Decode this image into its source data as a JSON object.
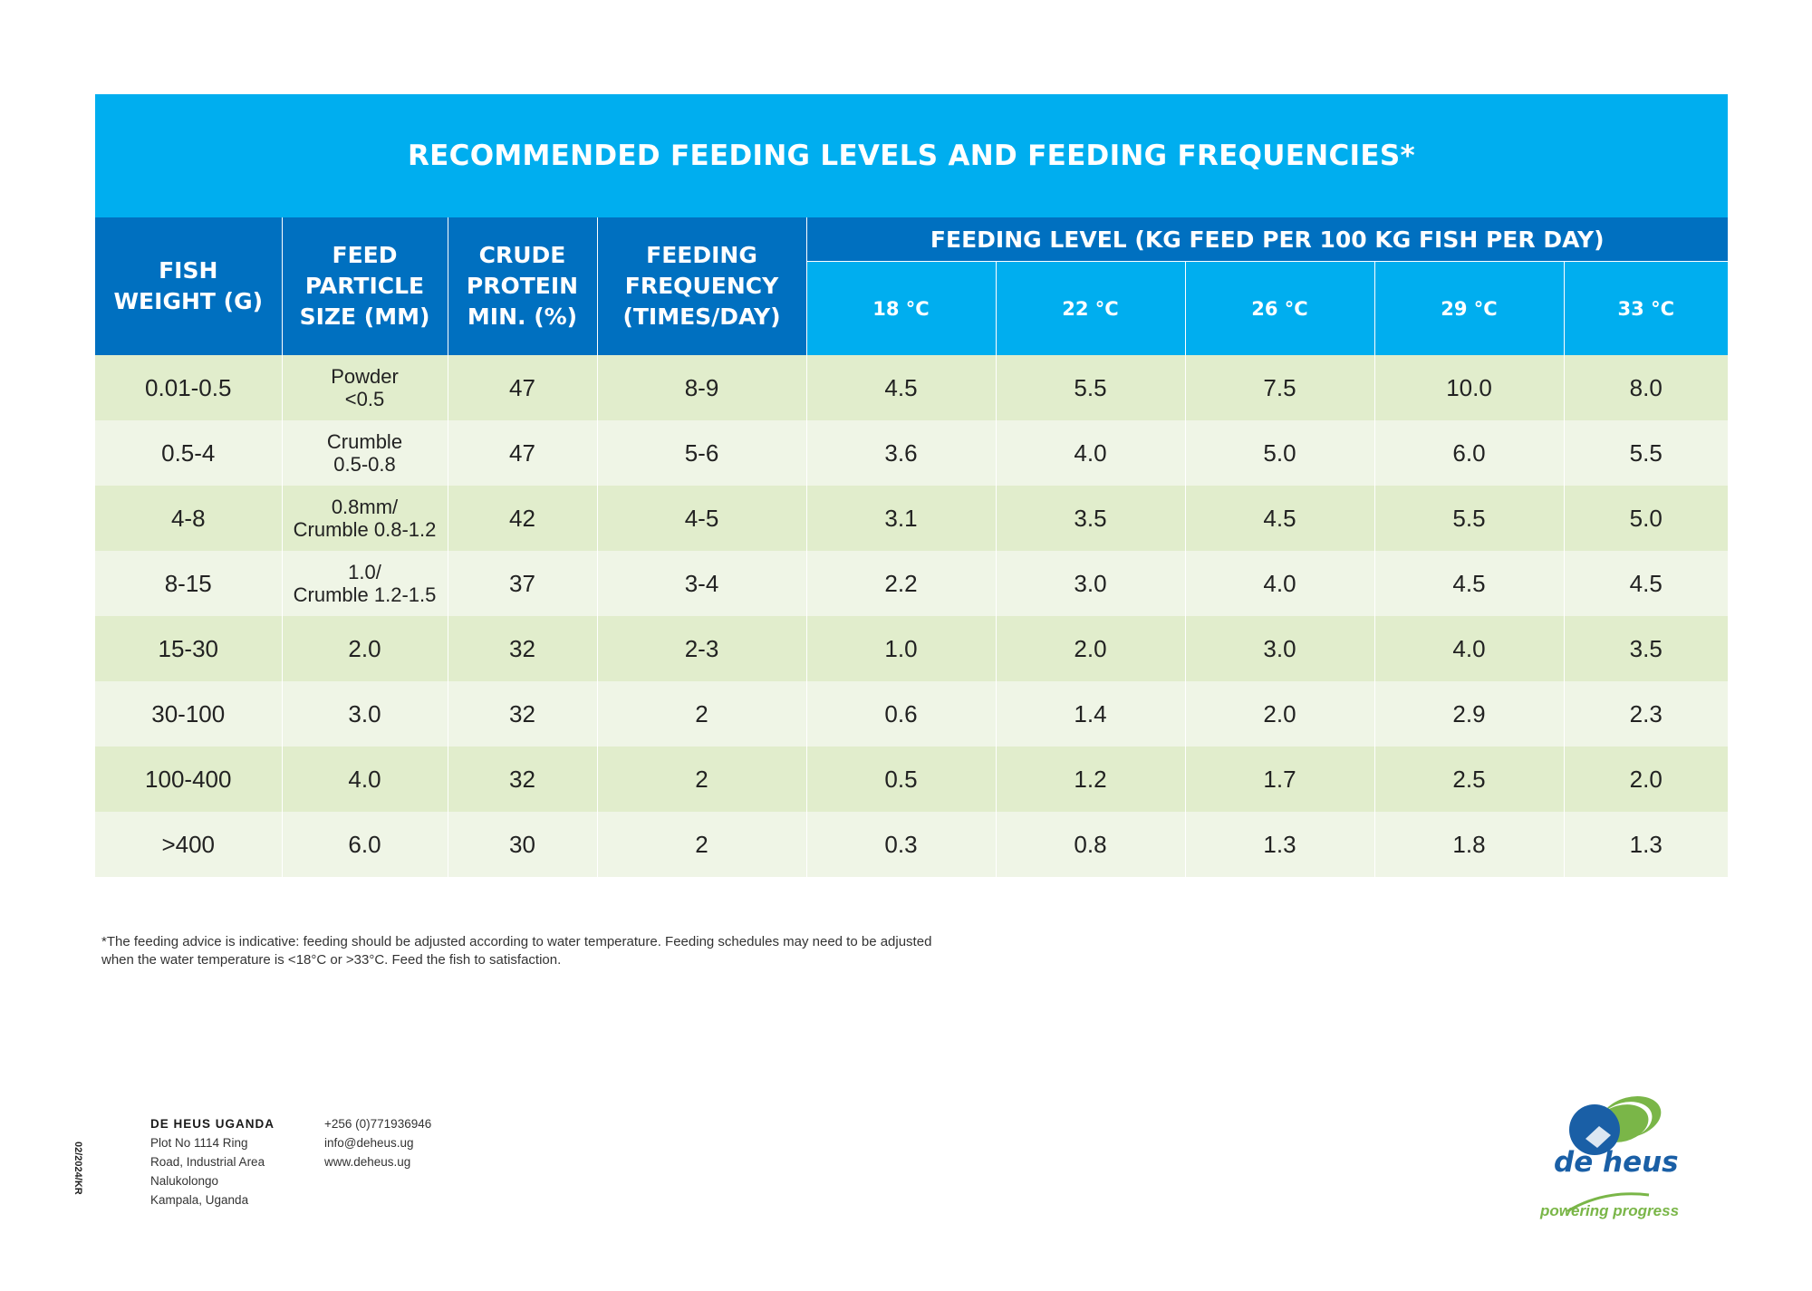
{
  "title": "RECOMMENDED FEEDING LEVELS AND FEEDING FREQUENCIES*",
  "headers": {
    "fish_weight": [
      "FISH",
      "WEIGHT (G)"
    ],
    "particle_size": [
      "FEED",
      "PARTICLE",
      "SIZE (MM)"
    ],
    "crude_protein": [
      "CRUDE",
      "PROTEIN",
      "MIN. (%)"
    ],
    "frequency": [
      "FEEDING",
      "FREQUENCY",
      "(TIMES/DAY)"
    ],
    "feeding_level": "FEEDING LEVEL (KG FEED PER 100 KG FISH PER DAY)",
    "temperatures": [
      "18 °C",
      "22 °C",
      "26 °C",
      "29 °C",
      "33 °C"
    ]
  },
  "rows": [
    {
      "weight": "0.01-0.5",
      "particle": [
        "Powder",
        "<0.5"
      ],
      "protein": "47",
      "frequency": "8-9",
      "levels": [
        "4.5",
        "5.5",
        "7.5",
        "10.0",
        "8.0"
      ]
    },
    {
      "weight": "0.5-4",
      "particle": [
        "Crumble",
        "0.5-0.8"
      ],
      "protein": "47",
      "frequency": "5-6",
      "levels": [
        "3.6",
        "4.0",
        "5.0",
        "6.0",
        "5.5"
      ]
    },
    {
      "weight": "4-8",
      "particle": [
        "0.8mm/",
        "Crumble 0.8-1.2"
      ],
      "protein": "42",
      "frequency": "4-5",
      "levels": [
        "3.1",
        "3.5",
        "4.5",
        "5.5",
        "5.0"
      ]
    },
    {
      "weight": "8-15",
      "particle": [
        "1.0/",
        "Crumble 1.2-1.5"
      ],
      "protein": "37",
      "frequency": "3-4",
      "levels": [
        "2.2",
        "3.0",
        "4.0",
        "4.5",
        "4.5"
      ]
    },
    {
      "weight": "15-30",
      "particle": [
        "2.0"
      ],
      "protein": "32",
      "frequency": "2-3",
      "levels": [
        "1.0",
        "2.0",
        "3.0",
        "4.0",
        "3.5"
      ]
    },
    {
      "weight": "30-100",
      "particle": [
        "3.0"
      ],
      "protein": "32",
      "frequency": "2",
      "levels": [
        "0.6",
        "1.4",
        "2.0",
        "2.9",
        "2.3"
      ]
    },
    {
      "weight": "100-400",
      "particle": [
        "4.0"
      ],
      "protein": "32",
      "frequency": "2",
      "levels": [
        "0.5",
        "1.2",
        "1.7",
        "2.5",
        "2.0"
      ]
    },
    {
      "weight": ">400",
      "particle": [
        "6.0"
      ],
      "protein": "30",
      "frequency": "2",
      "levels": [
        "0.3",
        "0.8",
        "1.3",
        "1.8",
        "1.3"
      ]
    }
  ],
  "note": "*The feeding advice is indicative: feeding should be adjusted according to water temperature. Feeding schedules may need to be adjusted when the water temperature is <18°C or >33°C. Feed the fish to satisfaction.",
  "footer": {
    "code": "02/2024/KR",
    "company_name": "DE HEUS UGANDA",
    "address": [
      "Plot No 1114 Ring",
      "Road, Industrial Area",
      "Nalukolongo",
      "Kampala, Uganda"
    ],
    "phone": "+256 (0)771936946",
    "email": "info@deheus.ug",
    "website": "www.deheus.ug"
  },
  "logo": {
    "name": "de heus",
    "tagline": "powering progress"
  },
  "colors": {
    "primary_blue": "#0070c0",
    "light_blue": "#00aeef",
    "row_green_dark": "#e1edcc",
    "row_green_light": "#eff5e6",
    "logo_green": "#7ab648"
  }
}
